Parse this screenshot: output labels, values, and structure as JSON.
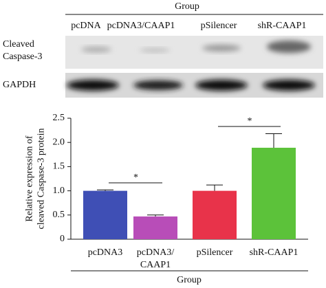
{
  "blot": {
    "title": "Group",
    "lanes": [
      "pcDNA",
      "pcDNA3/CAAP1",
      "pSilencer",
      "shR-CAAP1"
    ],
    "rows": [
      "Cleaved Caspase-3",
      "GAPDH"
    ]
  },
  "chart_data": {
    "type": "bar",
    "xlabel": "Group",
    "ylabel": "Relative expression of cleaved Caspase-3 protein",
    "categories": [
      "pcDNA3",
      "pcDNA3/CAAP1",
      "pSilencer",
      "shR-CAAP1"
    ],
    "values": [
      1.0,
      0.47,
      1.0,
      1.89
    ],
    "errors": [
      0.02,
      0.03,
      0.12,
      0.29
    ],
    "colors": [
      "#3f4fb5",
      "#b84db8",
      "#e8334a",
      "#5cc23a"
    ],
    "ylim": [
      0,
      2.5
    ],
    "yticks": [
      0,
      0.5,
      {
        "value": 1,
        "label": "1.0"
      },
      1.5,
      {
        "value": 2,
        "label": "2.0"
      },
      2.5
    ],
    "annotations": [
      "*",
      "*"
    ]
  }
}
